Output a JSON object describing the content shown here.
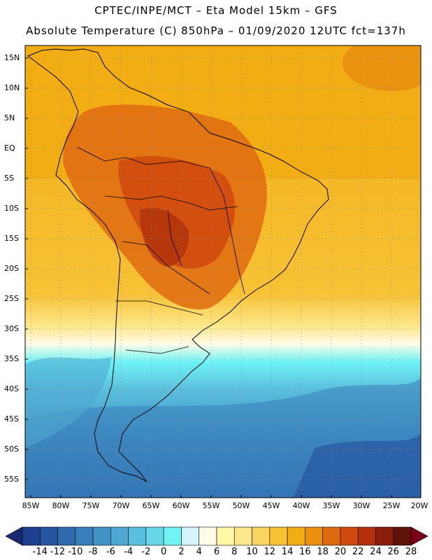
{
  "title": {
    "line1": "CPTEC/INPE/MCT –  Eta Model 15km – GFS",
    "line2": "Absolute Temperature (C) 850hPa – 01/09/2020 12UTC fct=137h"
  },
  "map": {
    "lat_labels": [
      "15N",
      "10N",
      "5N",
      "EQ",
      "5S",
      "10S",
      "15S",
      "20S",
      "25S",
      "30S",
      "35S",
      "40S",
      "45S",
      "50S",
      "55S"
    ],
    "lon_labels": [
      "85W",
      "80W",
      "75W",
      "70W",
      "65W",
      "60W",
      "55W",
      "50W",
      "45W",
      "40W",
      "35W",
      "30W",
      "25W",
      "20W"
    ]
  },
  "colorbar": {
    "ticks": [
      "-14",
      "-12",
      "-10",
      "-8",
      "-6",
      "-4",
      "-2",
      "0",
      "2",
      "4",
      "6",
      "8",
      "10",
      "12",
      "14",
      "16",
      "18",
      "20",
      "22",
      "24",
      "26",
      "28"
    ],
    "colors": [
      "#1f3f8f",
      "#2756a0",
      "#2e6aad",
      "#3880bb",
      "#4393c6",
      "#4ea8d2",
      "#5bc0dd",
      "#66d8e8",
      "#6ff3f5",
      "#d4f6fb",
      "#fffbe6",
      "#fff6a6",
      "#fde78a",
      "#fad55f",
      "#f7c236",
      "#f2ac14",
      "#e9900f",
      "#df6b10",
      "#cf4a0f",
      "#b3320d",
      "#8a1f0b",
      "#5f1308"
    ],
    "under_color": "#1b2a6e",
    "over_color": "#7a0018"
  }
}
